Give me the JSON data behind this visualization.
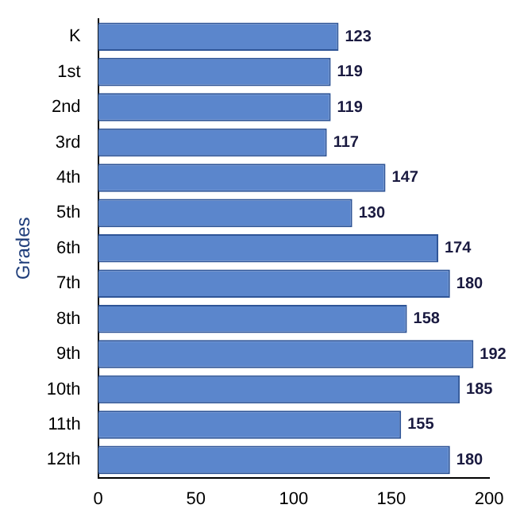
{
  "chart_data": {
    "type": "bar",
    "orientation": "horizontal",
    "ylabel": "Grades",
    "categories": [
      "K",
      "1st",
      "2nd",
      "3rd",
      "4th",
      "5th",
      "6th",
      "7th",
      "8th",
      "9th",
      "10th",
      "11th",
      "12th"
    ],
    "values": [
      123,
      119,
      119,
      117,
      147,
      130,
      174,
      180,
      158,
      192,
      185,
      155,
      180
    ],
    "color": "#5b86cc",
    "xlim": [
      0,
      200
    ],
    "xticks": [
      0,
      50,
      100,
      150,
      200
    ],
    "grid": false,
    "legend": false,
    "data_labels": true
  }
}
